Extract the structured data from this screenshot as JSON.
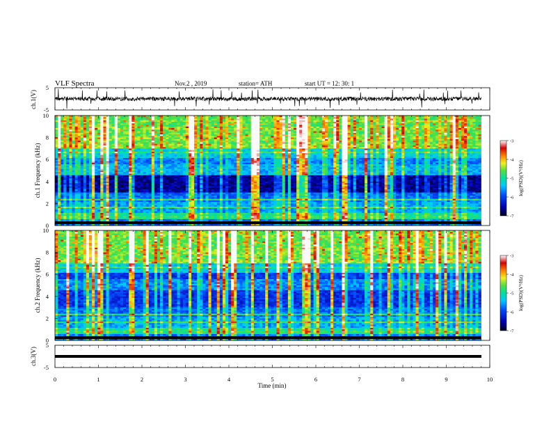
{
  "header": {
    "title": "VLF Spectra",
    "date": "Nov.2 , 2019",
    "station": "station= ATH",
    "start": "start UT = 12: 30: 1"
  },
  "colors": {
    "background": "#ffffff",
    "axis": "#000000",
    "colormap": [
      "#000033",
      "#0000c8",
      "#0050ff",
      "#00c8ff",
      "#00e8a0",
      "#5ae040",
      "#f0f020",
      "#ff8000",
      "#d80000",
      "#ffffff"
    ]
  },
  "chart_data": [
    {
      "type": "line",
      "panel": "ch1-waveform",
      "ylabel": "ch.1(V)",
      "ylim": [
        -5,
        5
      ],
      "yticks": [
        "5",
        "-5"
      ],
      "xlim": [
        0,
        10
      ],
      "series": [
        {
          "description_values": "noisy waveform centered near 0 V with spikes up to about ±2.5 V"
        }
      ],
      "baseline": 0
    },
    {
      "type": "heatmap",
      "panel": "ch1-spectrogram",
      "ylabel": "ch.1 Frequency (kHz)",
      "ylim": [
        0,
        10
      ],
      "yticks": [
        "10",
        "8",
        "6",
        "4",
        "2",
        "0"
      ],
      "xlim": [
        0,
        9.8
      ],
      "colorbar": {
        "label": "log(PSD)(V²/Hz)",
        "range": [
          -7,
          -3
        ],
        "ticks": [
          "-3",
          "-4",
          "-5",
          "-6",
          "-7"
        ]
      },
      "grid": false
    },
    {
      "type": "heatmap",
      "panel": "ch2-spectrogram",
      "ylabel": "ch.2 Frequency (kHz)",
      "ylim": [
        0,
        10
      ],
      "yticks": [
        "10",
        "8",
        "6",
        "4",
        "2",
        "0"
      ],
      "xlim": [
        0,
        9.8
      ],
      "colorbar": {
        "label": "log(PSD)(V²/Hz)",
        "range": [
          -7,
          -3
        ],
        "ticks": [
          "-3",
          "-4",
          "-5",
          "-6",
          "-7"
        ]
      },
      "grid": false
    },
    {
      "type": "line",
      "panel": "ch3-waveform",
      "ylabel": "ch.3(V)",
      "ylim": [
        -5,
        5
      ],
      "yticks": [
        "5",
        "-5"
      ],
      "xlim": [
        0,
        10
      ],
      "series": [
        {
          "constant_value": 0
        }
      ]
    }
  ],
  "xaxis": {
    "label": "Time (min)",
    "ticks": [
      "0",
      "1",
      "2",
      "3",
      "4",
      "5",
      "6",
      "7",
      "8",
      "9",
      "10"
    ]
  }
}
